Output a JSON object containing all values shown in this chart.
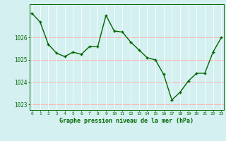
{
  "hours": [
    0,
    1,
    2,
    3,
    4,
    5,
    6,
    7,
    8,
    9,
    10,
    11,
    12,
    13,
    14,
    15,
    16,
    17,
    18,
    19,
    20,
    21,
    22,
    23
  ],
  "pressure": [
    1027.1,
    1026.7,
    1025.7,
    1025.3,
    1025.15,
    1025.35,
    1025.25,
    1025.6,
    1025.6,
    1027.0,
    1026.3,
    1026.25,
    1025.8,
    1025.45,
    1025.1,
    1025.0,
    1024.35,
    1023.2,
    1023.55,
    1024.05,
    1024.4,
    1024.4,
    1025.35,
    1026.0
  ],
  "line_color": "#006600",
  "marker_color": "#006600",
  "bg_color": "#d4f0f0",
  "grid_color_v": "#ffffff",
  "grid_color_h": "#ffaaaa",
  "axis_color": "#006600",
  "tick_label_color": "#006600",
  "xlabel": "Graphe pression niveau de la mer (hPa)",
  "xlabel_color": "#006600",
  "ylim": [
    1022.75,
    1027.5
  ],
  "yticks": [
    1023,
    1024,
    1025,
    1026
  ],
  "xticks": [
    0,
    1,
    2,
    3,
    4,
    5,
    6,
    7,
    8,
    9,
    10,
    11,
    12,
    13,
    14,
    15,
    16,
    17,
    18,
    19,
    20,
    21,
    22,
    23
  ],
  "linewidth": 1.0,
  "markersize": 3.0,
  "grid_linewidth": 0.5
}
